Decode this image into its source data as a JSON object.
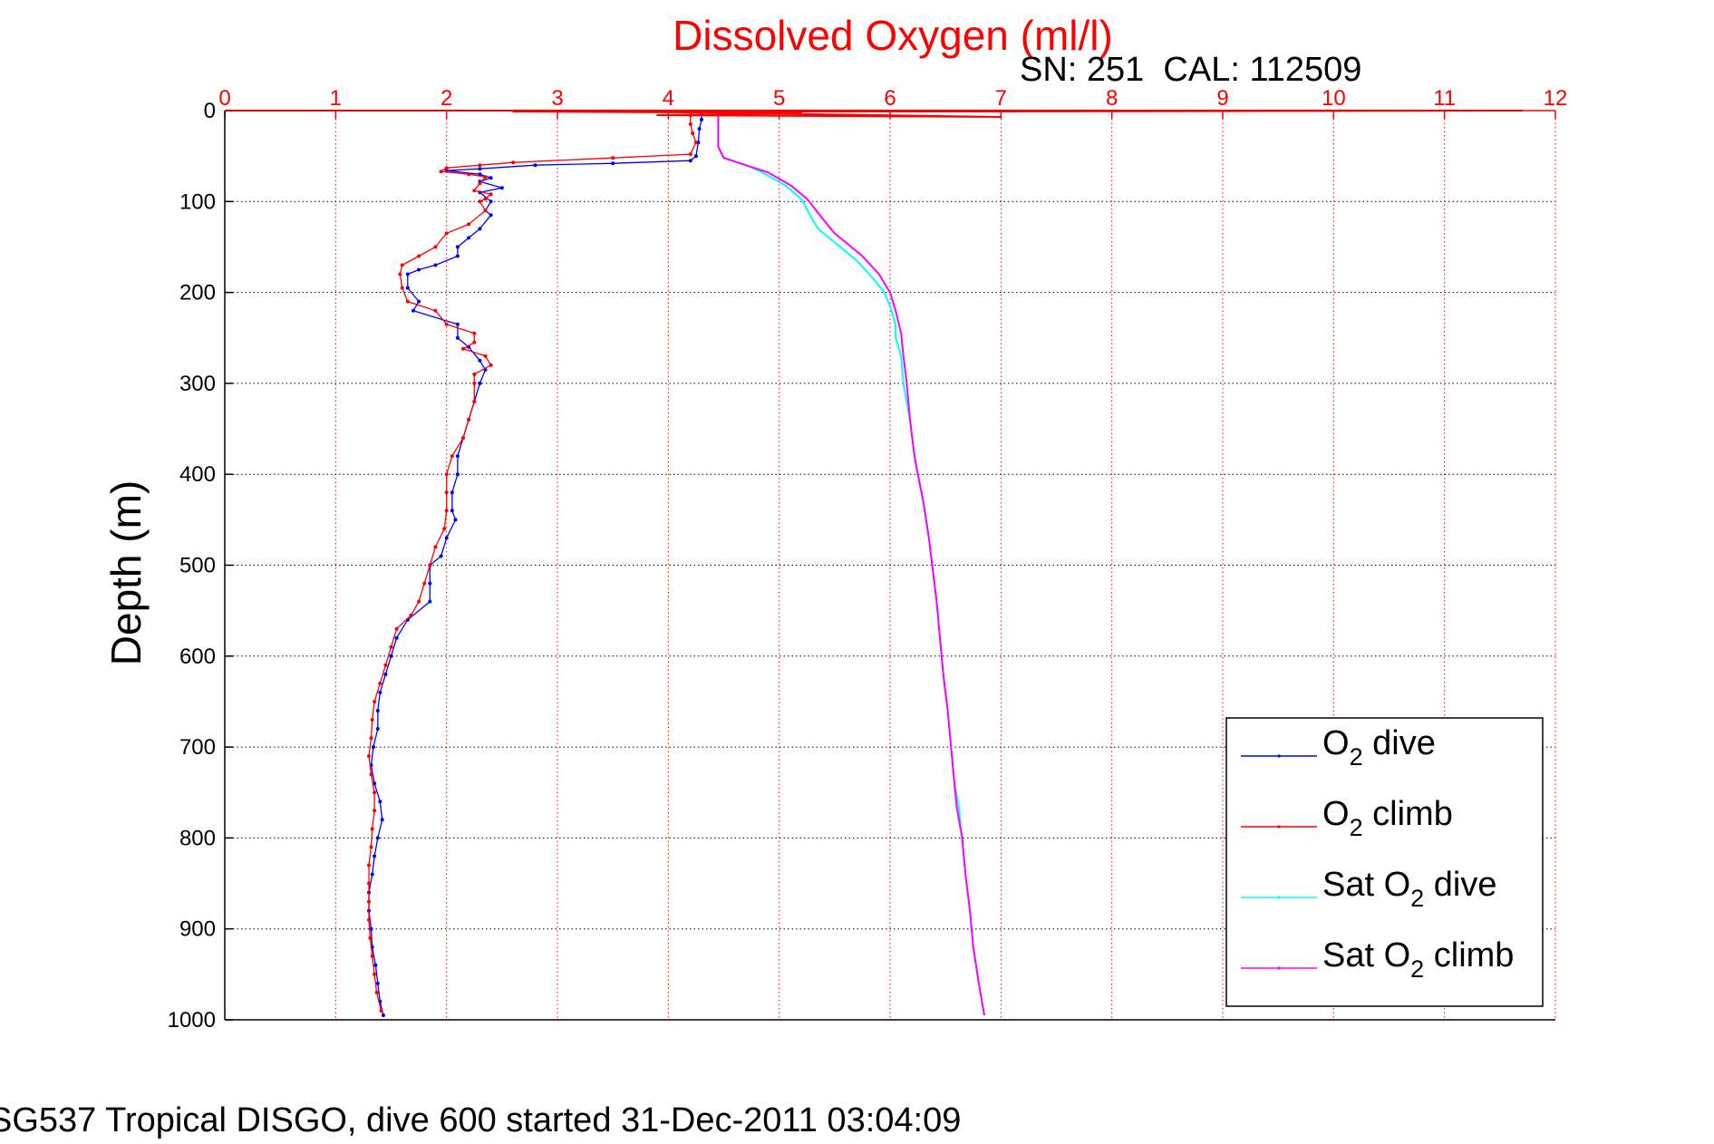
{
  "chart_data": {
    "type": "line",
    "title": "Dissolved Oxygen (ml/l)",
    "subtitle": "SN: 251  CAL: 112509",
    "footer": "SG537 Tropical DISGO, dive 600 started 31-Dec-2011 03:04:09",
    "ylabel": "Depth (m)",
    "xlim": [
      0,
      12
    ],
    "ylim": [
      0,
      1000
    ],
    "y_reversed": true,
    "x_axis_position": "top",
    "grid": true,
    "xticks": [
      0,
      1,
      2,
      3,
      4,
      5,
      6,
      7,
      8,
      9,
      10,
      11,
      12
    ],
    "yticks": [
      0,
      100,
      200,
      300,
      400,
      500,
      600,
      700,
      800,
      900,
      1000
    ],
    "colors": {
      "title": "#ff0000",
      "x_axis": "#ff0000",
      "y_axis": "#000000",
      "text": "#000000"
    },
    "legend": {
      "placement": "lower-right",
      "entries": [
        {
          "base": "O",
          "sub": "2",
          "rest": " dive",
          "color": "#0000ff"
        },
        {
          "base": "O",
          "sub": "2",
          "rest": " climb",
          "color": "#ff0000"
        },
        {
          "base": "Sat O",
          "sub": "2",
          "rest": " dive",
          "color": "#00ffff"
        },
        {
          "base": "Sat O",
          "sub": "2",
          "rest": " climb",
          "color": "#ff00ff"
        }
      ]
    },
    "series": [
      {
        "name": "O2 dive",
        "color": "#0000ff",
        "style": "line-dots",
        "points": [
          [
            4.3,
            2
          ],
          [
            4.3,
            10
          ],
          [
            4.28,
            20
          ],
          [
            4.27,
            35
          ],
          [
            4.25,
            50
          ],
          [
            4.2,
            55
          ],
          [
            3.5,
            58
          ],
          [
            2.8,
            60
          ],
          [
            2.3,
            64
          ],
          [
            2.0,
            66
          ],
          [
            2.3,
            70
          ],
          [
            2.4,
            74
          ],
          [
            2.3,
            78
          ],
          [
            2.5,
            85
          ],
          [
            2.3,
            90
          ],
          [
            2.4,
            100
          ],
          [
            2.35,
            110
          ],
          [
            2.4,
            115
          ],
          [
            2.3,
            130
          ],
          [
            2.2,
            140
          ],
          [
            2.1,
            150
          ],
          [
            2.1,
            160
          ],
          [
            1.9,
            170
          ],
          [
            1.75,
            175
          ],
          [
            1.65,
            180
          ],
          [
            1.65,
            195
          ],
          [
            1.75,
            210
          ],
          [
            1.7,
            220
          ],
          [
            2.1,
            235
          ],
          [
            2.1,
            250
          ],
          [
            2.2,
            260
          ],
          [
            2.3,
            275
          ],
          [
            2.35,
            285
          ],
          [
            2.3,
            300
          ],
          [
            2.25,
            320
          ],
          [
            2.2,
            340
          ],
          [
            2.15,
            360
          ],
          [
            2.1,
            380
          ],
          [
            2.1,
            400
          ],
          [
            2.05,
            420
          ],
          [
            2.05,
            440
          ],
          [
            2.08,
            450
          ],
          [
            2.0,
            470
          ],
          [
            1.95,
            490
          ],
          [
            1.85,
            500
          ],
          [
            1.85,
            520
          ],
          [
            1.85,
            540
          ],
          [
            1.65,
            560
          ],
          [
            1.55,
            580
          ],
          [
            1.5,
            600
          ],
          [
            1.45,
            620
          ],
          [
            1.4,
            640
          ],
          [
            1.38,
            660
          ],
          [
            1.38,
            680
          ],
          [
            1.34,
            700
          ],
          [
            1.32,
            720
          ],
          [
            1.35,
            740
          ],
          [
            1.4,
            760
          ],
          [
            1.42,
            780
          ],
          [
            1.38,
            800
          ],
          [
            1.35,
            820
          ],
          [
            1.33,
            840
          ],
          [
            1.3,
            860
          ],
          [
            1.3,
            880
          ],
          [
            1.32,
            900
          ],
          [
            1.33,
            920
          ],
          [
            1.36,
            940
          ],
          [
            1.38,
            960
          ],
          [
            1.4,
            980
          ],
          [
            1.43,
            995
          ]
        ]
      },
      {
        "name": "O2 climb",
        "color": "#ff0000",
        "style": "line-dots",
        "points": [
          [
            4.2,
            5
          ],
          [
            4.2,
            15
          ],
          [
            4.22,
            25
          ],
          [
            4.25,
            35
          ],
          [
            4.2,
            48
          ],
          [
            3.5,
            52
          ],
          [
            2.6,
            57
          ],
          [
            2.3,
            60
          ],
          [
            2.0,
            63
          ],
          [
            1.95,
            67
          ],
          [
            2.2,
            70
          ],
          [
            2.35,
            73
          ],
          [
            2.3,
            80
          ],
          [
            2.25,
            88
          ],
          [
            2.4,
            92
          ],
          [
            2.35,
            97
          ],
          [
            2.3,
            100
          ],
          [
            2.35,
            110
          ],
          [
            2.2,
            125
          ],
          [
            2.0,
            135
          ],
          [
            1.9,
            150
          ],
          [
            1.75,
            160
          ],
          [
            1.6,
            170
          ],
          [
            1.58,
            180
          ],
          [
            1.6,
            195
          ],
          [
            1.65,
            210
          ],
          [
            1.9,
            220
          ],
          [
            2.0,
            235
          ],
          [
            2.25,
            245
          ],
          [
            2.25,
            255
          ],
          [
            2.15,
            262
          ],
          [
            2.35,
            270
          ],
          [
            2.4,
            280
          ],
          [
            2.25,
            290
          ],
          [
            2.25,
            300
          ],
          [
            2.25,
            320
          ],
          [
            2.2,
            340
          ],
          [
            2.15,
            360
          ],
          [
            2.05,
            380
          ],
          [
            2.0,
            400
          ],
          [
            2.0,
            420
          ],
          [
            2.0,
            440
          ],
          [
            1.98,
            460
          ],
          [
            1.9,
            480
          ],
          [
            1.85,
            500
          ],
          [
            1.8,
            520
          ],
          [
            1.75,
            540
          ],
          [
            1.68,
            555
          ],
          [
            1.55,
            570
          ],
          [
            1.5,
            590
          ],
          [
            1.45,
            610
          ],
          [
            1.4,
            630
          ],
          [
            1.35,
            650
          ],
          [
            1.33,
            670
          ],
          [
            1.32,
            690
          ],
          [
            1.3,
            710
          ],
          [
            1.32,
            730
          ],
          [
            1.35,
            750
          ],
          [
            1.35,
            770
          ],
          [
            1.33,
            790
          ],
          [
            1.32,
            810
          ],
          [
            1.3,
            830
          ],
          [
            1.3,
            850
          ],
          [
            1.3,
            870
          ],
          [
            1.3,
            890
          ],
          [
            1.31,
            910
          ],
          [
            1.33,
            930
          ],
          [
            1.35,
            950
          ],
          [
            1.37,
            970
          ],
          [
            1.41,
            990
          ]
        ]
      },
      {
        "name": "Sat O2 dive",
        "color": "#00ffff",
        "style": "line",
        "points": [
          [
            4.45,
            2
          ],
          [
            4.45,
            40
          ],
          [
            4.5,
            52
          ],
          [
            4.7,
            60
          ],
          [
            4.85,
            68
          ],
          [
            5.05,
            82
          ],
          [
            5.2,
            97
          ],
          [
            5.3,
            120
          ],
          [
            5.35,
            130
          ],
          [
            5.55,
            150
          ],
          [
            5.7,
            165
          ],
          [
            5.85,
            185
          ],
          [
            5.95,
            200
          ],
          [
            6.0,
            215
          ],
          [
            6.05,
            235
          ],
          [
            6.05,
            250
          ],
          [
            6.1,
            270
          ],
          [
            6.12,
            300
          ],
          [
            6.18,
            340
          ],
          [
            6.22,
            380
          ],
          [
            6.25,
            400
          ],
          [
            6.3,
            430
          ],
          [
            6.35,
            470
          ],
          [
            6.38,
            500
          ],
          [
            6.42,
            540
          ],
          [
            6.45,
            580
          ],
          [
            6.48,
            620
          ],
          [
            6.52,
            660
          ],
          [
            6.55,
            700
          ],
          [
            6.58,
            740
          ],
          [
            6.62,
            765
          ],
          [
            6.65,
            800
          ],
          [
            6.68,
            840
          ],
          [
            6.72,
            880
          ],
          [
            6.75,
            920
          ],
          [
            6.8,
            960
          ],
          [
            6.85,
            995
          ]
        ]
      },
      {
        "name": "Sat O2 climb",
        "color": "#ff00ff",
        "style": "line",
        "points": [
          [
            4.45,
            2
          ],
          [
            4.45,
            40
          ],
          [
            4.5,
            52
          ],
          [
            4.7,
            60
          ],
          [
            4.9,
            68
          ],
          [
            5.1,
            82
          ],
          [
            5.25,
            97
          ],
          [
            5.4,
            120
          ],
          [
            5.5,
            135
          ],
          [
            5.6,
            145
          ],
          [
            5.75,
            160
          ],
          [
            5.9,
            180
          ],
          [
            6.0,
            200
          ],
          [
            6.05,
            220
          ],
          [
            6.1,
            245
          ],
          [
            6.12,
            270
          ],
          [
            6.15,
            300
          ],
          [
            6.18,
            340
          ],
          [
            6.22,
            380
          ],
          [
            6.25,
            400
          ],
          [
            6.3,
            430
          ],
          [
            6.35,
            470
          ],
          [
            6.38,
            500
          ],
          [
            6.42,
            540
          ],
          [
            6.45,
            580
          ],
          [
            6.48,
            620
          ],
          [
            6.52,
            660
          ],
          [
            6.55,
            700
          ],
          [
            6.58,
            740
          ],
          [
            6.6,
            765
          ],
          [
            6.65,
            800
          ],
          [
            6.68,
            840
          ],
          [
            6.72,
            880
          ],
          [
            6.75,
            920
          ],
          [
            6.8,
            960
          ],
          [
            6.85,
            995
          ]
        ]
      },
      {
        "name": "surface spikes",
        "color": "#ff0000",
        "style": "line",
        "legend": false,
        "points": [
          [
            0,
            0
          ],
          [
            7,
            0
          ],
          [
            11.7,
            0
          ],
          [
            7,
            1
          ],
          [
            2.6,
            1
          ],
          [
            4.2,
            2
          ],
          [
            7,
            7
          ],
          [
            3.9,
            5
          ],
          [
            5.2,
            3
          ],
          [
            4.3,
            1
          ]
        ]
      }
    ]
  }
}
